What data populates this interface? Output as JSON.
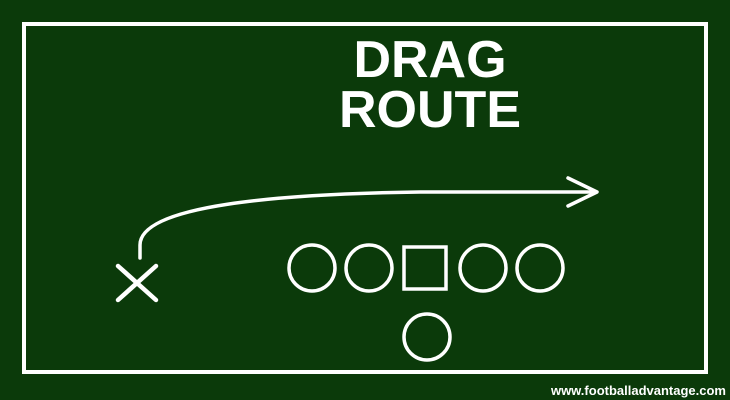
{
  "title": {
    "line1": "DRAG",
    "line2": "ROUTE"
  },
  "credit": "www.footballadvantage.com",
  "colors": {
    "field": "#0b3a0a",
    "chalk": "#ffffff"
  },
  "players": {
    "receiver_marker": "X",
    "offensive_line": [
      "circle",
      "circle",
      "square",
      "circle",
      "circle"
    ],
    "backfield": [
      "circle"
    ]
  },
  "route": {
    "name": "drag",
    "direction": "right",
    "arrowhead": "open"
  }
}
